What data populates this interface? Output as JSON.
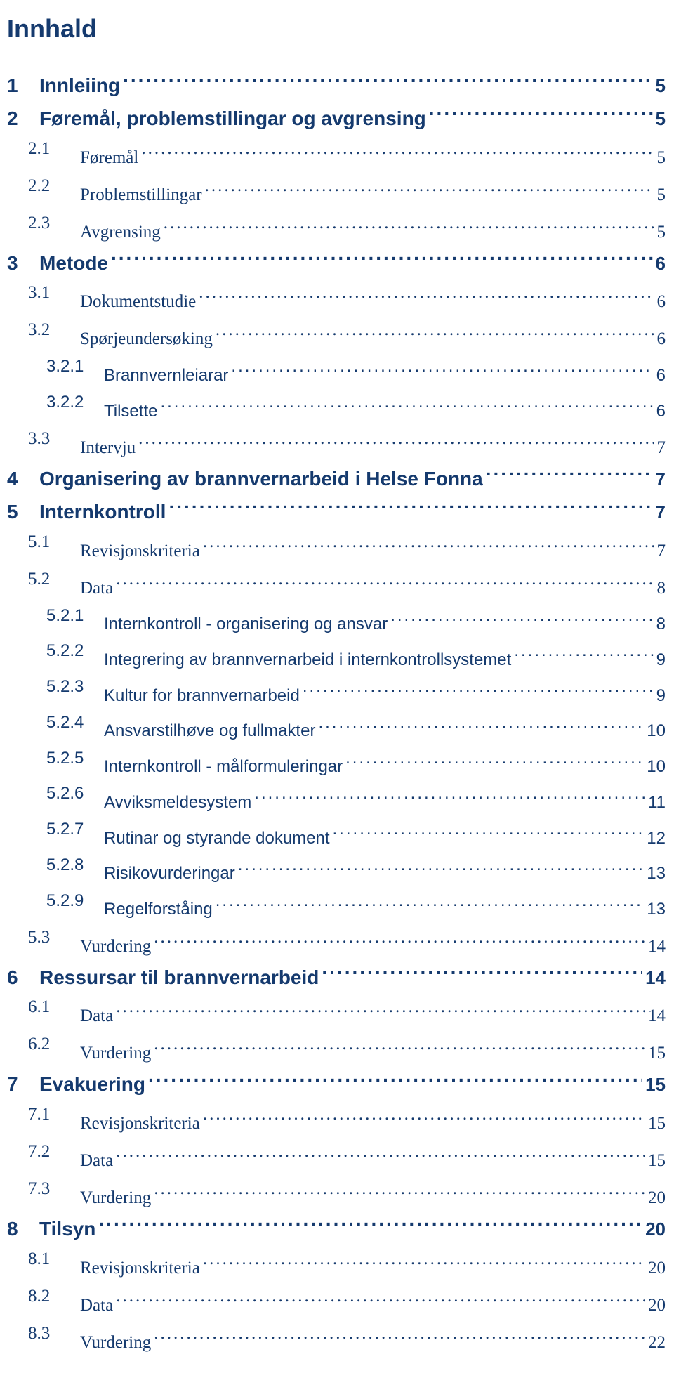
{
  "title": {
    "text": "Innhald",
    "fontsize": 36,
    "color": "#153a6e"
  },
  "colors": {
    "text": "#153a6e",
    "background": "#ffffff"
  },
  "entries": [
    {
      "level": 1,
      "num": "1",
      "label": "Innleiing",
      "page": "5"
    },
    {
      "level": 1,
      "num": "2",
      "label": "Føremål, problemstillingar og avgrensing",
      "page": "5"
    },
    {
      "level": 2,
      "num": "2.1",
      "label": "Føremål",
      "page": "5"
    },
    {
      "level": 2,
      "num": "2.2",
      "label": "Problemstillingar",
      "page": "5"
    },
    {
      "level": 2,
      "num": "2.3",
      "label": "Avgrensing",
      "page": "5"
    },
    {
      "level": 1,
      "num": "3",
      "label": "Metode",
      "page": "6"
    },
    {
      "level": 2,
      "num": "3.1",
      "label": "Dokumentstudie",
      "page": "6"
    },
    {
      "level": 2,
      "num": "3.2",
      "label": "Spørjeundersøking",
      "page": "6"
    },
    {
      "level": 3,
      "num": "3.2.1",
      "label": "Brannvernleiarar",
      "page": "6"
    },
    {
      "level": 3,
      "num": "3.2.2",
      "label": "Tilsette",
      "page": "6"
    },
    {
      "level": 2,
      "num": "3.3",
      "label": "Intervju",
      "page": "7"
    },
    {
      "level": 1,
      "num": "4",
      "label": "Organisering av brannvernarbeid i Helse Fonna",
      "page": "7"
    },
    {
      "level": 1,
      "num": "5",
      "label": "Internkontroll",
      "page": "7"
    },
    {
      "level": 2,
      "num": "5.1",
      "label": "Revisjonskriteria",
      "page": "7"
    },
    {
      "level": 2,
      "num": "5.2",
      "label": "Data",
      "page": "8"
    },
    {
      "level": 3,
      "num": "5.2.1",
      "label": "Internkontroll - organisering og ansvar",
      "page": "8"
    },
    {
      "level": 3,
      "num": "5.2.2",
      "label": "Integrering av brannvernarbeid i internkontrollsystemet",
      "page": "9"
    },
    {
      "level": 3,
      "num": "5.2.3",
      "label": "Kultur for brannvernarbeid",
      "page": "9"
    },
    {
      "level": 3,
      "num": "5.2.4",
      "label": "Ansvarstilhøve og fullmakter",
      "page": "10"
    },
    {
      "level": 3,
      "num": "5.2.5",
      "label": "Internkontroll - målformuleringar",
      "page": "10"
    },
    {
      "level": 3,
      "num": "5.2.6",
      "label": "Avviksmeldesystem",
      "page": "11"
    },
    {
      "level": 3,
      "num": "5.2.7",
      "label": "Rutinar og styrande dokument",
      "page": "12"
    },
    {
      "level": 3,
      "num": "5.2.8",
      "label": "Risikovurderingar",
      "page": "13"
    },
    {
      "level": 3,
      "num": "5.2.9",
      "label": "Regelforståing",
      "page": "13"
    },
    {
      "level": 2,
      "num": "5.3",
      "label": "Vurdering",
      "page": "14"
    },
    {
      "level": 1,
      "num": "6",
      "label": "Ressursar til brannvernarbeid",
      "page": "14"
    },
    {
      "level": 2,
      "num": "6.1",
      "label": "Data",
      "page": "14"
    },
    {
      "level": 2,
      "num": "6.2",
      "label": "Vurdering",
      "page": "15"
    },
    {
      "level": 1,
      "num": "7",
      "label": "Evakuering",
      "page": "15"
    },
    {
      "level": 2,
      "num": "7.1",
      "label": "Revisjonskriteria",
      "page": "15"
    },
    {
      "level": 2,
      "num": "7.2",
      "label": "Data",
      "page": "15"
    },
    {
      "level": 2,
      "num": "7.3",
      "label": "Vurdering",
      "page": "20"
    },
    {
      "level": 1,
      "num": "8",
      "label": "Tilsyn",
      "page": "20"
    },
    {
      "level": 2,
      "num": "8.1",
      "label": "Revisjonskriteria",
      "page": "20"
    },
    {
      "level": 2,
      "num": "8.2",
      "label": "Data",
      "page": "20"
    },
    {
      "level": 2,
      "num": "8.3",
      "label": "Vurdering",
      "page": "22"
    }
  ]
}
